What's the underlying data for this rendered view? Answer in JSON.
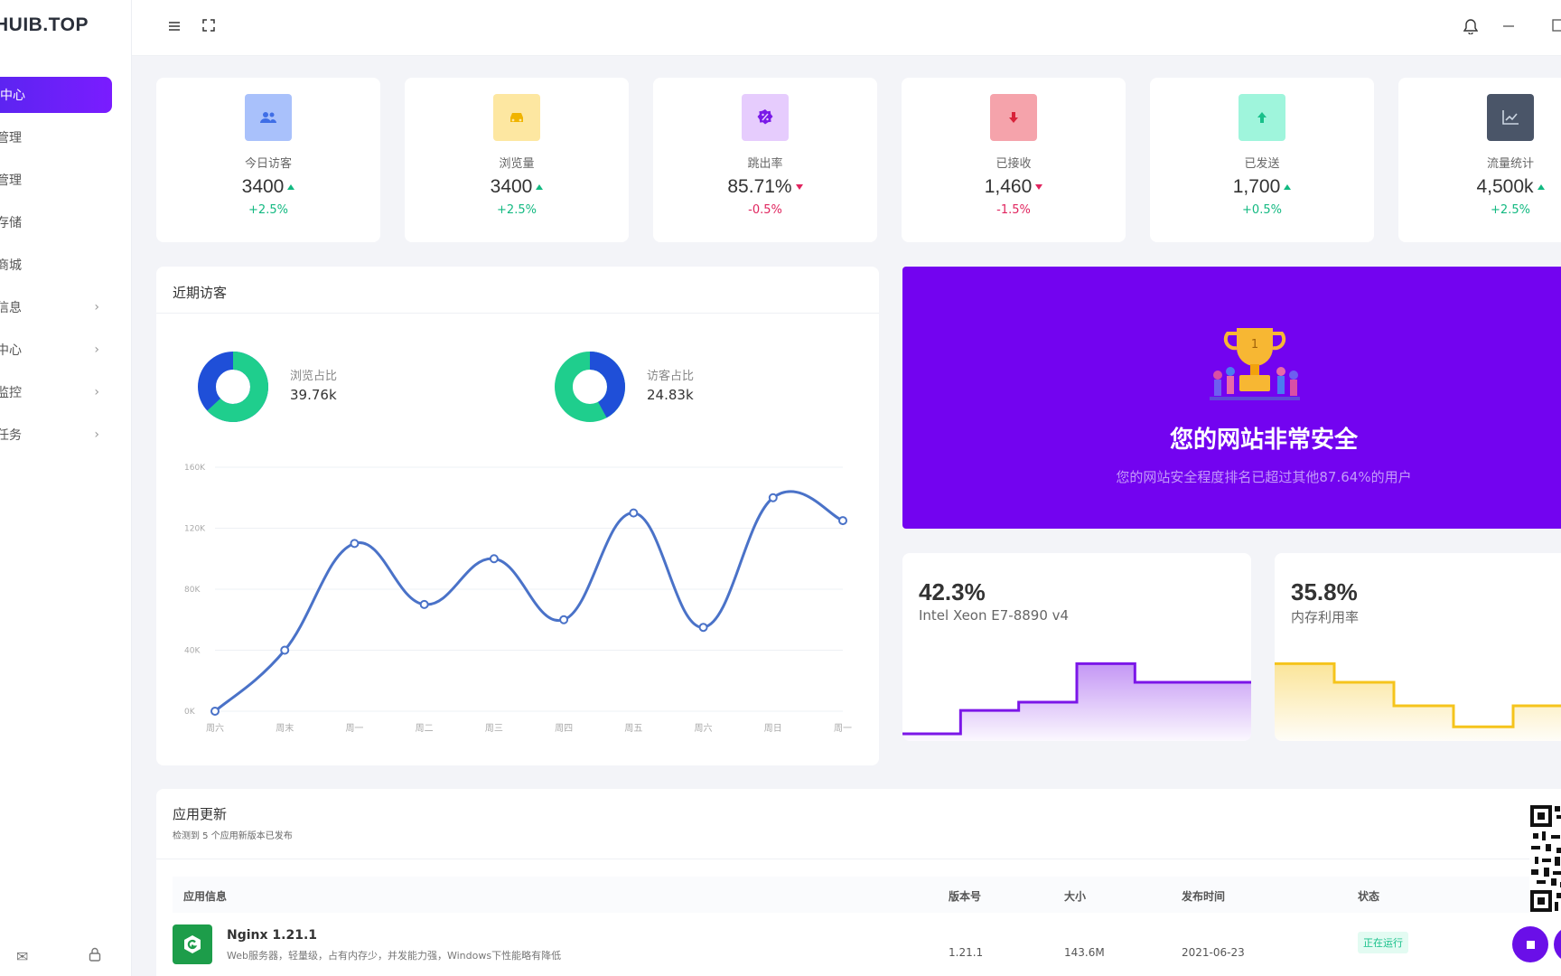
{
  "sidebar": {
    "logo": "HUIB.TOP",
    "items": [
      {
        "label": "中心",
        "active": true,
        "has_children": false
      },
      {
        "label": "管理",
        "active": false,
        "has_children": false
      },
      {
        "label": "管理",
        "active": false,
        "has_children": false
      },
      {
        "label": "存储",
        "active": false,
        "has_children": false
      },
      {
        "label": "商城",
        "active": false,
        "has_children": false
      },
      {
        "label": "信息",
        "active": false,
        "has_children": true
      },
      {
        "label": "中心",
        "active": false,
        "has_children": true
      },
      {
        "label": "监控",
        "active": false,
        "has_children": true
      },
      {
        "label": "任务",
        "active": false,
        "has_children": true
      }
    ]
  },
  "stats": [
    {
      "label": "今日访客",
      "value": "3400",
      "trend": "up",
      "change": "+2.5%",
      "icon": "users-icon",
      "icon_bg": "#a9c1fb",
      "icon_color": "#3f6ee6"
    },
    {
      "label": "浏览量",
      "value": "3400",
      "trend": "up",
      "change": "+2.5%",
      "icon": "car-icon",
      "icon_bg": "#fde7a1",
      "icon_color": "#f0b400"
    },
    {
      "label": "跳出率",
      "value": "85.71%",
      "trend": "down",
      "change": "-0.5%",
      "icon": "percent-icon",
      "icon_bg": "#e6ccfd",
      "icon_color": "#7a1ae8"
    },
    {
      "label": "已接收",
      "value": "1,460",
      "trend": "down",
      "change": "-1.5%",
      "icon": "arrow-down-icon",
      "icon_bg": "#f5a3ab",
      "icon_color": "#d8223a"
    },
    {
      "label": "已发送",
      "value": "1,700",
      "trend": "up",
      "change": "+0.5%",
      "icon": "arrow-up-icon",
      "icon_bg": "#9ff5dc",
      "icon_color": "#18c08a"
    },
    {
      "label": "流量统计",
      "value": "4,500k",
      "trend": "up",
      "change": "+2.5%",
      "icon": "chart-icon",
      "icon_bg": "#4a5568",
      "icon_color": "#cbd5e1"
    }
  ],
  "visitors_panel": {
    "title": "近期访客",
    "donut1": {
      "label": "浏览占比",
      "value": "39.76k",
      "primary": 0.63
    },
    "donut2": {
      "label": "访客占比",
      "value": "24.83k",
      "primary": 0.42
    }
  },
  "chart_data": {
    "type": "line",
    "categories": [
      "周六",
      "周末",
      "周一",
      "周二",
      "周三",
      "周四",
      "周五",
      "周六",
      "周日",
      "周一"
    ],
    "series": [
      {
        "values": [
          0,
          40000,
          110000,
          70000,
          100000,
          60000,
          130000,
          55000,
          140000,
          125000
        ],
        "color": "#4a72c8"
      }
    ],
    "yticks": [
      "0K",
      "40K",
      "80K",
      "120K",
      "160K"
    ],
    "ylim": [
      0,
      160000
    ],
    "xlabel": "",
    "ylabel": "",
    "grid": true
  },
  "promo": {
    "title": "您的网站非常安全",
    "subtitle": "您的网站安全程度排名已超过其他87.64%的用户",
    "bg": "#7303f0"
  },
  "cpu": {
    "value": "42.3%",
    "label": "Intel Xeon E7-8890 v4",
    "levels": [
      0,
      1,
      1.35,
      3.0,
      2.2,
      2.2
    ],
    "color": "#7b16e8"
  },
  "memory": {
    "value": "35.8%",
    "label": "内存利用率",
    "levels": [
      3.0,
      2.2,
      1.2,
      0.3,
      1.2
    ],
    "color": "#f5c41c"
  },
  "updates": {
    "title": "应用更新",
    "subtitle": "检测到 5 个应用新版本已发布",
    "columns": [
      "应用信息",
      "版本号",
      "大小",
      "发布时间",
      "状态"
    ],
    "rows": [
      {
        "name": "Nginx 1.21.1",
        "desc": "Web服务器，轻量级，占有内存少，并发能力强，Windows下性能略有降低",
        "version": "1.21.1",
        "size": "143.6M",
        "date": "2021-06-23",
        "status": "正在运行"
      }
    ]
  }
}
